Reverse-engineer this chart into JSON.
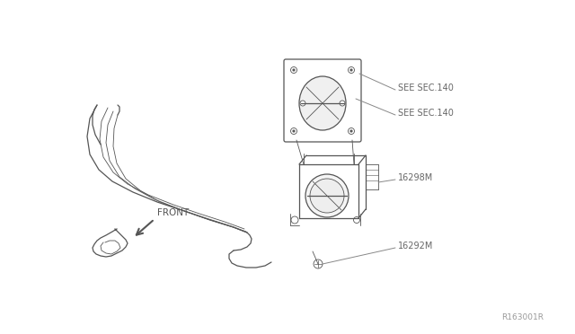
{
  "background_color": "#ffffff",
  "line_color": "#555555",
  "label_color": "#666666",
  "leader_color": "#888888",
  "ref_code": "R163001R",
  "labels": {
    "see_sec_140_top": "SEE SEC.140",
    "see_sec_140_bot": "SEE SEC.140",
    "part_16298M": "16298M",
    "part_16292M": "16292M",
    "front": "FRONT"
  },
  "fig_width": 6.4,
  "fig_height": 3.72,
  "dpi": 100
}
